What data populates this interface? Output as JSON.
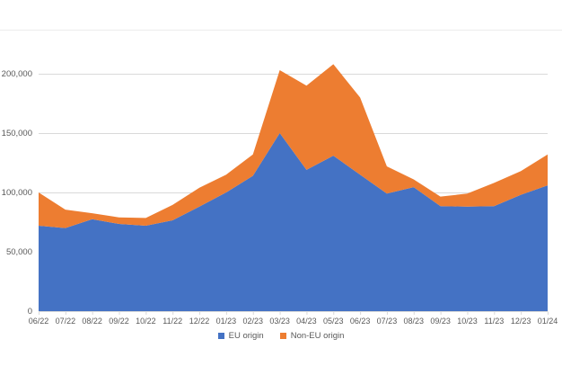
{
  "chart_data": {
    "type": "area",
    "stacked": true,
    "title": "",
    "xlabel": "",
    "ylabel": "",
    "categories": [
      "06/22",
      "07/22",
      "08/22",
      "09/22",
      "10/22",
      "11/22",
      "12/22",
      "01/23",
      "02/23",
      "03/23",
      "04/23",
      "05/23",
      "06/23",
      "07/23",
      "08/23",
      "09/23",
      "10/23",
      "11/23",
      "12/23",
      "01/24"
    ],
    "series": [
      {
        "name": "EU origin",
        "color": "#4472C4",
        "values": [
          72000,
          70000,
          77500,
          73500,
          72000,
          76500,
          88000,
          100000,
          114000,
          150000,
          119000,
          131000,
          115000,
          99000,
          104500,
          88500,
          88000,
          88500,
          98000,
          106000
        ]
      },
      {
        "name": "Non-EU origin",
        "color": "#ED7D31",
        "values": [
          28000,
          15500,
          5000,
          5500,
          6500,
          13000,
          16000,
          15000,
          18000,
          53000,
          71000,
          77000,
          65000,
          23000,
          6500,
          8000,
          11000,
          19500,
          20000,
          26000
        ]
      }
    ],
    "stacked_totals": [
      100000,
      85500,
      82500,
      79000,
      78500,
      89500,
      104000,
      115000,
      132000,
      203000,
      190000,
      208000,
      180000,
      122000,
      111000,
      96500,
      99000,
      108000,
      118000,
      132000
    ],
    "y_ticks": [
      {
        "value": 0,
        "label": "0"
      },
      {
        "value": 50000,
        "label": "50,000"
      },
      {
        "value": 100000,
        "label": "100,000"
      },
      {
        "value": 150000,
        "label": "150,000"
      },
      {
        "value": 200000,
        "label": "200,000"
      }
    ],
    "ylim": [
      0,
      250000
    ],
    "grid": true,
    "legend_position": "bottom",
    "colors": {
      "gridline": "#d9d9d9",
      "axis_line": "#d9d9d9",
      "axis_text": "#595959"
    }
  }
}
